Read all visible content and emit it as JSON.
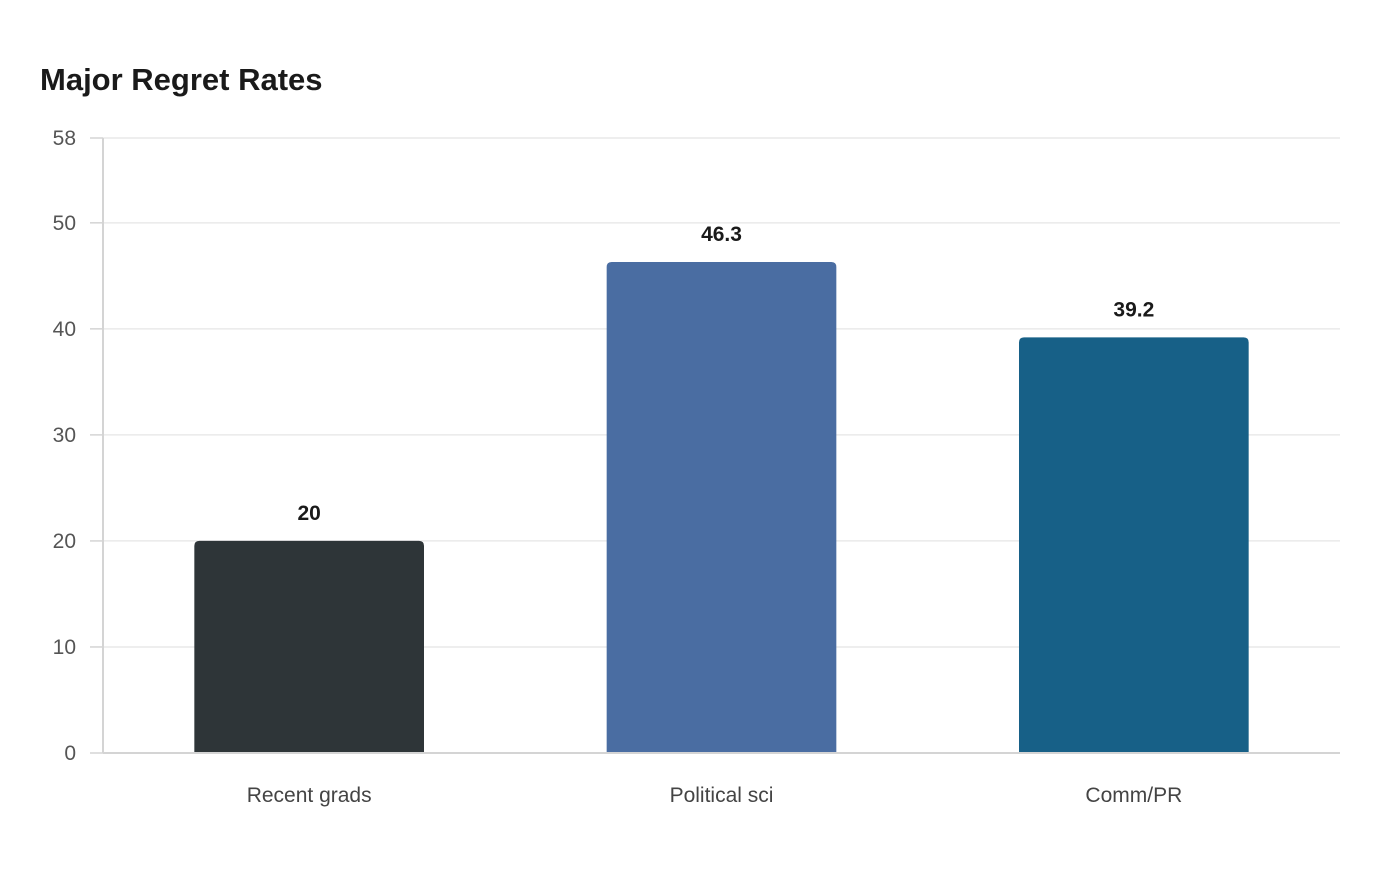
{
  "chart_data": {
    "type": "bar",
    "title": "Major Regret Rates",
    "xlabel": "",
    "ylabel": "",
    "categories": [
      "Recent grads",
      "Political sci",
      "Comm/PR"
    ],
    "values": [
      20,
      46.3,
      39.2
    ],
    "value_labels": [
      "20",
      "46.3",
      "39.2"
    ],
    "bar_colors": [
      "#2e3538",
      "#4a6da2",
      "#176087"
    ],
    "ylim": [
      0,
      58
    ],
    "yticks": [
      0,
      10,
      20,
      30,
      40,
      50,
      58
    ],
    "ytick_labels": [
      "0",
      "10",
      "20",
      "30",
      "40",
      "50",
      "58"
    ],
    "grid": true,
    "legend": "none"
  }
}
